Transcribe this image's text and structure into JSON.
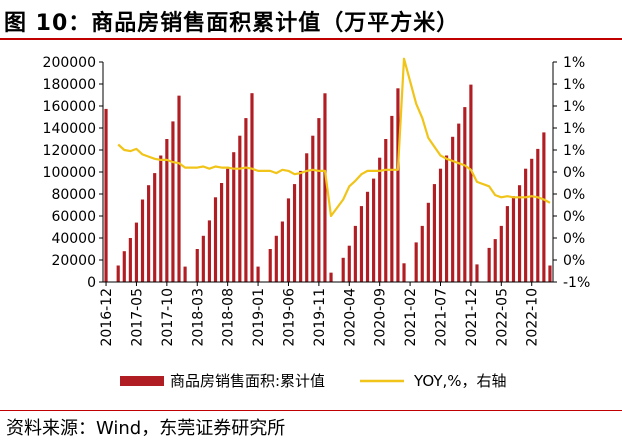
{
  "title": "图 10：商品房销售面积累计值（万平方米）",
  "source": "资料来源：Wind，东莞证券研究所",
  "colors": {
    "bars": "#b01d23",
    "line": "#f0c419",
    "rule": "#c00000"
  },
  "chart_data": {
    "type": "bar+line",
    "left_axis": {
      "min": 0,
      "max": 200000,
      "ticks": [
        "0",
        "20000",
        "40000",
        "60000",
        "80000",
        "100000",
        "120000",
        "140000",
        "160000",
        "180000",
        "200000"
      ]
    },
    "right_axis": {
      "min": -1,
      "max": 1,
      "ticks": [
        "-1%",
        "0%",
        "0%",
        "0%",
        "0%",
        "0%",
        "1%",
        "1%",
        "1%",
        "1%",
        "1%"
      ]
    },
    "x_tick_labels": [
      "2016-12",
      "2017-05",
      "2017-10",
      "2018-03",
      "2018-08",
      "2019-01",
      "2019-06",
      "2019-11",
      "2020-04",
      "2020-09",
      "2021-02",
      "2021-07",
      "2021-12",
      "2022-05",
      "2022-10"
    ],
    "legend": [
      "商品房销售面积:累计值",
      "YOY,%，右轴"
    ],
    "series": [
      {
        "name": "商品房销售面积:累计值",
        "type": "bar",
        "axis": "left",
        "values": [
          157349,
          null,
          15000,
          28000,
          40000,
          54000,
          75000,
          88000,
          99000,
          115000,
          130000,
          146000,
          169408,
          14000,
          null,
          30000,
          42000,
          56000,
          77000,
          90000,
          103000,
          118000,
          133000,
          149000,
          171654,
          14000,
          null,
          30000,
          42000,
          55000,
          76000,
          89000,
          101000,
          117000,
          133000,
          149000,
          171558,
          8500,
          null,
          22000,
          33000,
          51000,
          69000,
          82000,
          94000,
          113000,
          130000,
          151000,
          176086,
          17000,
          null,
          36000,
          51000,
          72000,
          89000,
          103000,
          115000,
          132000,
          144000,
          159000,
          179433,
          16000,
          null,
          31000,
          39000,
          51000,
          69000,
          78000,
          88000,
          103000,
          112000,
          121000,
          136000,
          15000
        ]
      },
      {
        "name": "YOY,%，右轴",
        "type": "line",
        "axis": "right",
        "values": [
          null,
          null,
          0.25,
          0.2,
          0.19,
          0.21,
          0.16,
          0.14,
          0.12,
          0.11,
          0.11,
          0.09,
          0.08,
          0.04,
          null,
          0.04,
          0.05,
          0.03,
          0.05,
          0.04,
          0.04,
          0.03,
          0.03,
          0.04,
          0.03,
          0.01,
          null,
          0.01,
          -0.01,
          0.02,
          0.01,
          -0.02,
          -0.01,
          0.01,
          0.02,
          0.01,
          0.01,
          -0.4,
          null,
          -0.25,
          -0.13,
          -0.08,
          -0.02,
          0.01,
          0.01,
          0.01,
          0.02,
          0.02,
          0.02,
          1.03,
          null,
          0.62,
          0.49,
          0.31,
          0.23,
          0.15,
          0.12,
          0.1,
          0.08,
          0.06,
          0.02,
          -0.09,
          null,
          -0.13,
          -0.21,
          -0.23,
          -0.22,
          -0.23,
          -0.23,
          -0.23,
          -0.22,
          -0.23,
          -0.25,
          -0.28
        ]
      }
    ]
  }
}
